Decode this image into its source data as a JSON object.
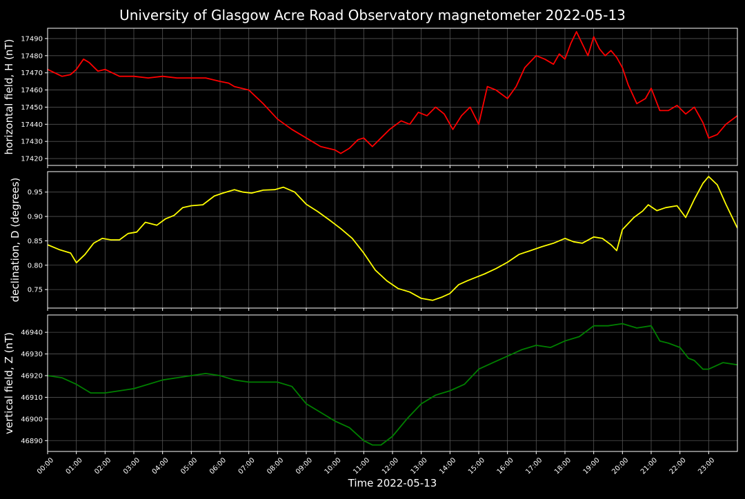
{
  "title": "University of Glasgow Acre Road Observatory magnetometer 2022-05-13",
  "xlabel": "Time 2022-05-13",
  "xticks": [
    "00:00",
    "01:00",
    "02:00",
    "03:00",
    "04:00",
    "05:00",
    "06:00",
    "07:00",
    "08:00",
    "09:00",
    "10:00",
    "11:00",
    "12:00",
    "13:00",
    "14:00",
    "15:00",
    "16:00",
    "17:00",
    "18:00",
    "19:00",
    "20:00",
    "21:00",
    "22:00",
    "23:00"
  ],
  "colors": {
    "background": "#000000",
    "axes": "#ffffff",
    "grid": "#555555",
    "text": "#ffffff"
  },
  "chart_data": [
    {
      "type": "line",
      "ylabel": "horizontal field, H (nT)",
      "color": "#ff0000",
      "xlim": [
        0,
        24
      ],
      "ylim": [
        17416,
        17496
      ],
      "yticks": [
        17420,
        17430,
        17440,
        17450,
        17460,
        17470,
        17480,
        17490
      ],
      "grid": true,
      "x": [
        0,
        0.5,
        0.8,
        1.0,
        1.25,
        1.45,
        1.75,
        2.0,
        2.5,
        3.0,
        3.5,
        4.0,
        4.5,
        5.0,
        5.5,
        6.0,
        6.3,
        6.5,
        7.0,
        7.5,
        8.0,
        8.5,
        9.0,
        9.5,
        10.0,
        10.2,
        10.5,
        10.8,
        11.0,
        11.3,
        11.6,
        11.9,
        12.3,
        12.6,
        12.9,
        13.2,
        13.5,
        13.8,
        14.1,
        14.4,
        14.7,
        15.0,
        15.3,
        15.6,
        16.0,
        16.3,
        16.6,
        17.0,
        17.3,
        17.6,
        17.8,
        18.0,
        18.2,
        18.4,
        18.6,
        18.8,
        19.0,
        19.2,
        19.4,
        19.6,
        19.8,
        20.0,
        20.2,
        20.5,
        20.8,
        21.0,
        21.3,
        21.6,
        21.9,
        22.2,
        22.5,
        22.8,
        23.0,
        23.3,
        23.6,
        24.0
      ],
      "values": [
        17472,
        17468,
        17469,
        17472,
        17478,
        17476,
        17471,
        17472,
        17468,
        17468,
        17467,
        17468,
        17467,
        17467,
        17467,
        17465,
        17464,
        17462,
        17460,
        17452,
        17443,
        17437,
        17432,
        17427,
        17425,
        17423,
        17426,
        17431,
        17432,
        17427,
        17432,
        17437,
        17442,
        17440,
        17447,
        17445,
        17450,
        17446,
        17437,
        17445,
        17450,
        17440,
        17462,
        17460,
        17455,
        17462,
        17473,
        17480,
        17478,
        17475,
        17481,
        17478,
        17487,
        17494,
        17487,
        17480,
        17491,
        17484,
        17480,
        17483,
        17479,
        17473,
        17463,
        17452,
        17455,
        17461,
        17448,
        17448,
        17451,
        17446,
        17450,
        17441,
        17432,
        17434,
        17440,
        17445
      ]
    },
    {
      "type": "line",
      "ylabel": "declination, D (degrees)",
      "color": "#ffff00",
      "xlim": [
        0,
        24
      ],
      "ylim": [
        0.712,
        0.992
      ],
      "yticks": [
        0.75,
        0.8,
        0.85,
        0.9,
        0.95
      ],
      "grid": true,
      "x": [
        0,
        0.4,
        0.8,
        1.0,
        1.3,
        1.6,
        1.9,
        2.2,
        2.5,
        2.8,
        3.1,
        3.4,
        3.8,
        4.1,
        4.4,
        4.7,
        5.0,
        5.4,
        5.8,
        6.1,
        6.5,
        6.8,
        7.1,
        7.5,
        7.9,
        8.2,
        8.6,
        9.0,
        9.4,
        9.8,
        10.2,
        10.6,
        11.0,
        11.4,
        11.8,
        12.2,
        12.6,
        13.0,
        13.4,
        13.7,
        14.0,
        14.3,
        14.6,
        14.9,
        15.2,
        15.6,
        16.0,
        16.4,
        16.8,
        17.2,
        17.6,
        18.0,
        18.3,
        18.6,
        19.0,
        19.3,
        19.6,
        19.8,
        20.0,
        20.4,
        20.7,
        20.9,
        21.2,
        21.5,
        21.9,
        22.2,
        22.5,
        22.8,
        23.0,
        23.3,
        23.6,
        24.0
      ],
      "values": [
        0.842,
        0.832,
        0.825,
        0.805,
        0.822,
        0.845,
        0.855,
        0.852,
        0.852,
        0.865,
        0.868,
        0.888,
        0.882,
        0.895,
        0.902,
        0.918,
        0.922,
        0.924,
        0.942,
        0.948,
        0.955,
        0.95,
        0.948,
        0.954,
        0.955,
        0.96,
        0.95,
        0.925,
        0.91,
        0.893,
        0.875,
        0.855,
        0.825,
        0.79,
        0.768,
        0.752,
        0.745,
        0.732,
        0.728,
        0.734,
        0.742,
        0.76,
        0.768,
        0.775,
        0.782,
        0.793,
        0.806,
        0.822,
        0.83,
        0.838,
        0.845,
        0.855,
        0.848,
        0.845,
        0.858,
        0.855,
        0.842,
        0.83,
        0.873,
        0.898,
        0.911,
        0.924,
        0.912,
        0.918,
        0.922,
        0.898,
        0.935,
        0.968,
        0.982,
        0.965,
        0.925,
        0.876
      ]
    },
    {
      "type": "line",
      "ylabel": "vertical field, Z (nT)",
      "color": "#008000",
      "xlim": [
        0,
        24
      ],
      "ylim": [
        46885,
        46948
      ],
      "yticks": [
        46890,
        46900,
        46910,
        46920,
        46930,
        46940
      ],
      "grid": true,
      "x": [
        0,
        0.5,
        1.0,
        1.5,
        2.0,
        2.5,
        3.0,
        3.5,
        4.0,
        4.5,
        5.0,
        5.5,
        6.0,
        6.5,
        7.0,
        7.5,
        8.0,
        8.5,
        9.0,
        9.5,
        10.0,
        10.5,
        11.0,
        11.3,
        11.6,
        12.0,
        12.5,
        13.0,
        13.5,
        14.0,
        14.5,
        15.0,
        15.5,
        16.0,
        16.5,
        17.0,
        17.5,
        18.0,
        18.5,
        19.0,
        19.5,
        20.0,
        20.5,
        21.0,
        21.3,
        21.6,
        22.0,
        22.3,
        22.5,
        22.8,
        23.0,
        23.5,
        24.0
      ],
      "values": [
        46920,
        46919,
        46916,
        46912,
        46912,
        46913,
        46914,
        46916,
        46918,
        46919,
        46920,
        46921,
        46920,
        46918,
        46917,
        46917,
        46917,
        46915,
        46907,
        46903,
        46899,
        46896,
        46890,
        46888,
        46888,
        46892,
        46900,
        46907,
        46911,
        46913,
        46916,
        46923,
        46926,
        46929,
        46932,
        46934,
        46933,
        46936,
        46938,
        46943,
        46943,
        46944,
        46942,
        46943,
        46936,
        46935,
        46933,
        46928,
        46927,
        46923,
        46923,
        46926,
        46925
      ]
    }
  ]
}
